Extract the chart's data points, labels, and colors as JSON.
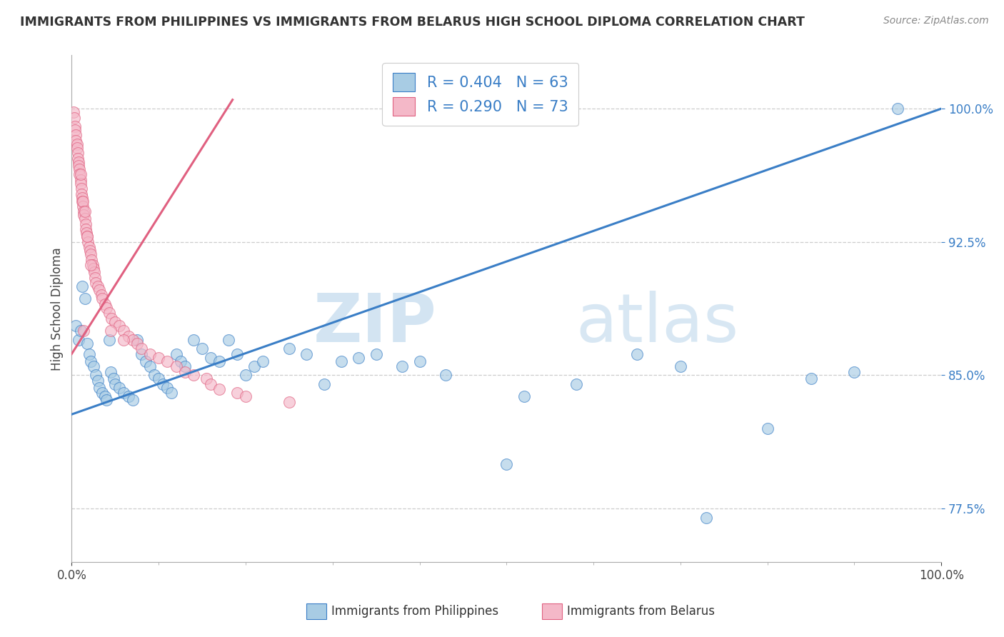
{
  "title": "IMMIGRANTS FROM PHILIPPINES VS IMMIGRANTS FROM BELARUS HIGH SCHOOL DIPLOMA CORRELATION CHART",
  "source_text": "Source: ZipAtlas.com",
  "ylabel": "High School Diploma",
  "r1": 0.404,
  "n1": 63,
  "r2": 0.29,
  "n2": 73,
  "color_blue": "#a8cce4",
  "color_pink": "#f4b8c8",
  "line_blue": "#3a7ec6",
  "line_pink": "#e06080",
  "watermark_zip": "ZIP",
  "watermark_atlas": "atlas",
  "legend_label1": "Immigrants from Philippines",
  "legend_label2": "Immigrants from Belarus",
  "phil_line_x0": 0.0,
  "phil_line_y0": 0.828,
  "phil_line_x1": 1.0,
  "phil_line_y1": 1.0,
  "bel_line_x0": 0.0,
  "bel_line_y0": 0.862,
  "bel_line_x1": 0.185,
  "bel_line_y1": 1.005,
  "xlim": [
    0.0,
    1.0
  ],
  "ylim": [
    0.745,
    1.03
  ],
  "yticks": [
    0.775,
    0.85,
    0.925,
    1.0
  ],
  "ytick_labels": [
    "77.5%",
    "85.0%",
    "92.5%",
    "100.0%"
  ],
  "phil_x": [
    0.005,
    0.008,
    0.01,
    0.012,
    0.015,
    0.018,
    0.02,
    0.022,
    0.025,
    0.028,
    0.03,
    0.032,
    0.035,
    0.038,
    0.04,
    0.043,
    0.045,
    0.048,
    0.05,
    0.055,
    0.06,
    0.065,
    0.07,
    0.075,
    0.08,
    0.085,
    0.09,
    0.095,
    0.1,
    0.105,
    0.11,
    0.115,
    0.12,
    0.125,
    0.13,
    0.14,
    0.15,
    0.16,
    0.17,
    0.18,
    0.19,
    0.2,
    0.21,
    0.22,
    0.25,
    0.27,
    0.29,
    0.31,
    0.33,
    0.35,
    0.38,
    0.4,
    0.43,
    0.5,
    0.52,
    0.58,
    0.65,
    0.7,
    0.73,
    0.8,
    0.85,
    0.9,
    0.95
  ],
  "phil_y": [
    0.878,
    0.87,
    0.875,
    0.9,
    0.893,
    0.868,
    0.862,
    0.858,
    0.855,
    0.85,
    0.847,
    0.843,
    0.84,
    0.838,
    0.836,
    0.87,
    0.852,
    0.848,
    0.845,
    0.843,
    0.84,
    0.838,
    0.836,
    0.87,
    0.862,
    0.858,
    0.855,
    0.85,
    0.848,
    0.845,
    0.843,
    0.84,
    0.862,
    0.858,
    0.855,
    0.87,
    0.865,
    0.86,
    0.858,
    0.87,
    0.862,
    0.85,
    0.855,
    0.858,
    0.865,
    0.862,
    0.845,
    0.858,
    0.86,
    0.862,
    0.855,
    0.858,
    0.85,
    0.8,
    0.838,
    0.845,
    0.862,
    0.855,
    0.77,
    0.82,
    0.848,
    0.852,
    1.0
  ],
  "bel_x": [
    0.002,
    0.003,
    0.004,
    0.004,
    0.005,
    0.005,
    0.006,
    0.006,
    0.007,
    0.007,
    0.008,
    0.008,
    0.009,
    0.009,
    0.01,
    0.01,
    0.01,
    0.011,
    0.011,
    0.012,
    0.012,
    0.013,
    0.013,
    0.014,
    0.014,
    0.015,
    0.015,
    0.016,
    0.016,
    0.017,
    0.018,
    0.019,
    0.02,
    0.021,
    0.022,
    0.023,
    0.024,
    0.025,
    0.026,
    0.027,
    0.028,
    0.03,
    0.032,
    0.034,
    0.035,
    0.038,
    0.04,
    0.043,
    0.046,
    0.05,
    0.055,
    0.06,
    0.065,
    0.07,
    0.075,
    0.08,
    0.09,
    0.1,
    0.11,
    0.12,
    0.13,
    0.14,
    0.155,
    0.16,
    0.17,
    0.19,
    0.2,
    0.25,
    0.06,
    0.045,
    0.022,
    0.018,
    0.014
  ],
  "bel_y": [
    0.998,
    0.995,
    0.99,
    0.988,
    0.985,
    0.982,
    0.98,
    0.978,
    0.975,
    0.972,
    0.97,
    0.968,
    0.966,
    0.963,
    0.96,
    0.958,
    0.963,
    0.955,
    0.952,
    0.95,
    0.948,
    0.945,
    0.948,
    0.942,
    0.94,
    0.938,
    0.942,
    0.935,
    0.932,
    0.93,
    0.928,
    0.925,
    0.922,
    0.92,
    0.918,
    0.915,
    0.912,
    0.91,
    0.908,
    0.905,
    0.902,
    0.9,
    0.898,
    0.895,
    0.893,
    0.89,
    0.888,
    0.885,
    0.882,
    0.88,
    0.878,
    0.875,
    0.872,
    0.87,
    0.868,
    0.865,
    0.862,
    0.86,
    0.858,
    0.855,
    0.852,
    0.85,
    0.848,
    0.845,
    0.842,
    0.84,
    0.838,
    0.835,
    0.87,
    0.875,
    0.912,
    0.928,
    0.875
  ]
}
